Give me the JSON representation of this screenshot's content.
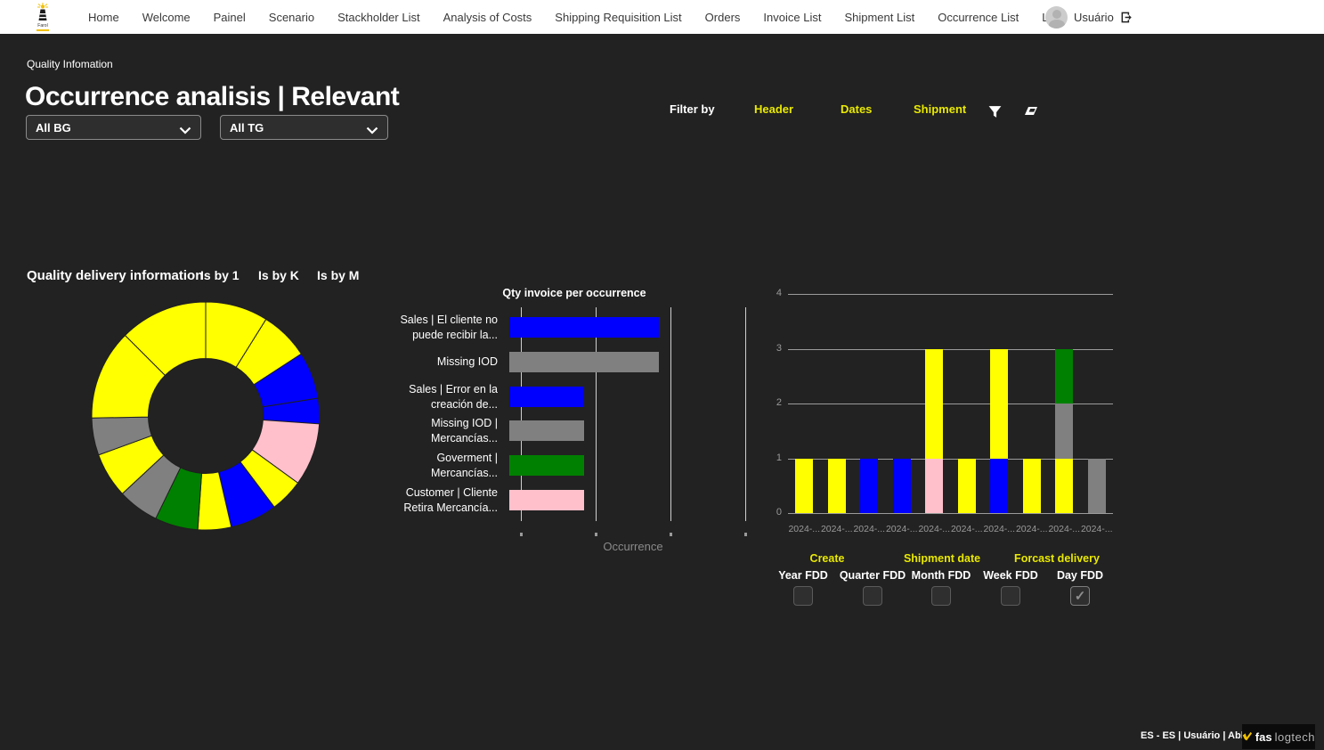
{
  "nav": {
    "brand": "Farol",
    "items": [
      "Home",
      "Welcome",
      "Painel",
      "Scenario",
      "Stackholder List",
      "Analysis of Costs",
      "Shipping Requisition List",
      "Orders",
      "Invoice List",
      "Shipment List",
      "Occurrence List",
      "Log"
    ],
    "user_label": "Usuário"
  },
  "header": {
    "eyebrow": "Quality Infomation",
    "title": "Occurrence analisis | Relevant",
    "bg_filter_value": "All BG",
    "tg_filter_value": "All TG"
  },
  "filter_bar": {
    "label": "Filter by",
    "options": [
      "Header",
      "Dates",
      "Shipment"
    ],
    "icons": [
      "filter-icon",
      "eraser-icon"
    ]
  },
  "quality_section": {
    "title": "Quality delivery information",
    "tabs": [
      "Is by 1",
      "Is by K",
      "Is by M"
    ]
  },
  "colors": {
    "background": "#222222",
    "navbar": "#FFFFFF",
    "accent_yellow": "#E9E900",
    "brand_yellow": "#F0C000",
    "bar_yellow": "#FFFF00",
    "bar_blue": "#0000FF",
    "bar_pink": "#FFC0CB",
    "bar_green": "#008000",
    "bar_gray": "#808080"
  },
  "chart_data": [
    {
      "type": "pie",
      "subtype": "donut",
      "title": "Quality delivery information",
      "legend": false,
      "segments_clockwise_from_top": [
        {
          "color": "#FFFF00",
          "degrees": 32
        },
        {
          "color": "#FFFF00",
          "degrees": 25
        },
        {
          "color": "#0000FF",
          "degrees": 24
        },
        {
          "color": "#0000FF",
          "degrees": 13
        },
        {
          "color": "#FFC0CB",
          "degrees": 32
        },
        {
          "color": "#FFFF00",
          "degrees": 17
        },
        {
          "color": "#0000FF",
          "degrees": 24
        },
        {
          "color": "#FFFF00",
          "degrees": 17
        },
        {
          "color": "#008000",
          "degrees": 22
        },
        {
          "color": "#808080",
          "degrees": 21
        },
        {
          "color": "#FFFF00",
          "degrees": 23
        },
        {
          "color": "#808080",
          "degrees": 19
        },
        {
          "color": "#FFFF00",
          "degrees": 46
        },
        {
          "color": "#FFFF00",
          "degrees": 45
        }
      ]
    },
    {
      "type": "bar",
      "orientation": "horizontal",
      "title": "Qty invoice per occurrence",
      "xlabel": "Occurrence",
      "xlim": [
        0,
        3
      ],
      "grid": true,
      "categories": [
        "Sales | El cliente no puede recibir la...",
        "Missing IOD",
        "Sales | Error en la creación de...",
        "Missing IOD | Mercancías...",
        "Goverment | Mercancías...",
        "Customer | Cliente Retira Mercancía..."
      ],
      "values": [
        2,
        2,
        1,
        1,
        1,
        1
      ],
      "bar_colors": [
        "#0000FF",
        "#808080",
        "#0000FF",
        "#808080",
        "#008000",
        "#FFC0CB"
      ]
    },
    {
      "type": "bar",
      "orientation": "vertical",
      "stacked": true,
      "title": "",
      "ylim": [
        0,
        4
      ],
      "yticks": [
        0,
        1,
        2,
        3,
        4
      ],
      "grid": true,
      "categories": [
        "2024-...",
        "2024-...",
        "2024-...",
        "2024-...",
        "2024-...",
        "2024-...",
        "2024-...",
        "2024-...",
        "2024-...",
        "2024-..."
      ],
      "bars": [
        [
          {
            "color": "#FFFF00",
            "value": 1
          }
        ],
        [
          {
            "color": "#FFFF00",
            "value": 1
          }
        ],
        [
          {
            "color": "#0000FF",
            "value": 1
          }
        ],
        [
          {
            "color": "#0000FF",
            "value": 1
          }
        ],
        [
          {
            "color": "#FFC0CB",
            "value": 1
          },
          {
            "color": "#FFFF00",
            "value": 2
          }
        ],
        [
          {
            "color": "#FFFF00",
            "value": 1
          }
        ],
        [
          {
            "color": "#0000FF",
            "value": 1
          },
          {
            "color": "#FFFF00",
            "value": 2
          }
        ],
        [
          {
            "color": "#FFFF00",
            "value": 1
          }
        ],
        [
          {
            "color": "#FFFF00",
            "value": 1
          },
          {
            "color": "#808080",
            "value": 1
          },
          {
            "color": "#008000",
            "value": 1
          }
        ],
        [
          {
            "color": "#808080",
            "value": 1
          }
        ]
      ]
    }
  ],
  "date_filters": {
    "groups": [
      {
        "label": "Create"
      },
      {
        "label": "Shipment date"
      },
      {
        "label": "Forcast delivery"
      }
    ],
    "items": [
      {
        "label": "Year FDD",
        "checked": false
      },
      {
        "label": "Quarter FDD",
        "checked": false
      },
      {
        "label": "Month FDD",
        "checked": false
      },
      {
        "label": "Week FDD",
        "checked": false
      },
      {
        "label": "Day FDD",
        "checked": true
      }
    ]
  },
  "footer": {
    "status_text": "ES - ES | Usuário | Able TG: All",
    "logo_primary": "fas",
    "logo_secondary": "logtech"
  }
}
